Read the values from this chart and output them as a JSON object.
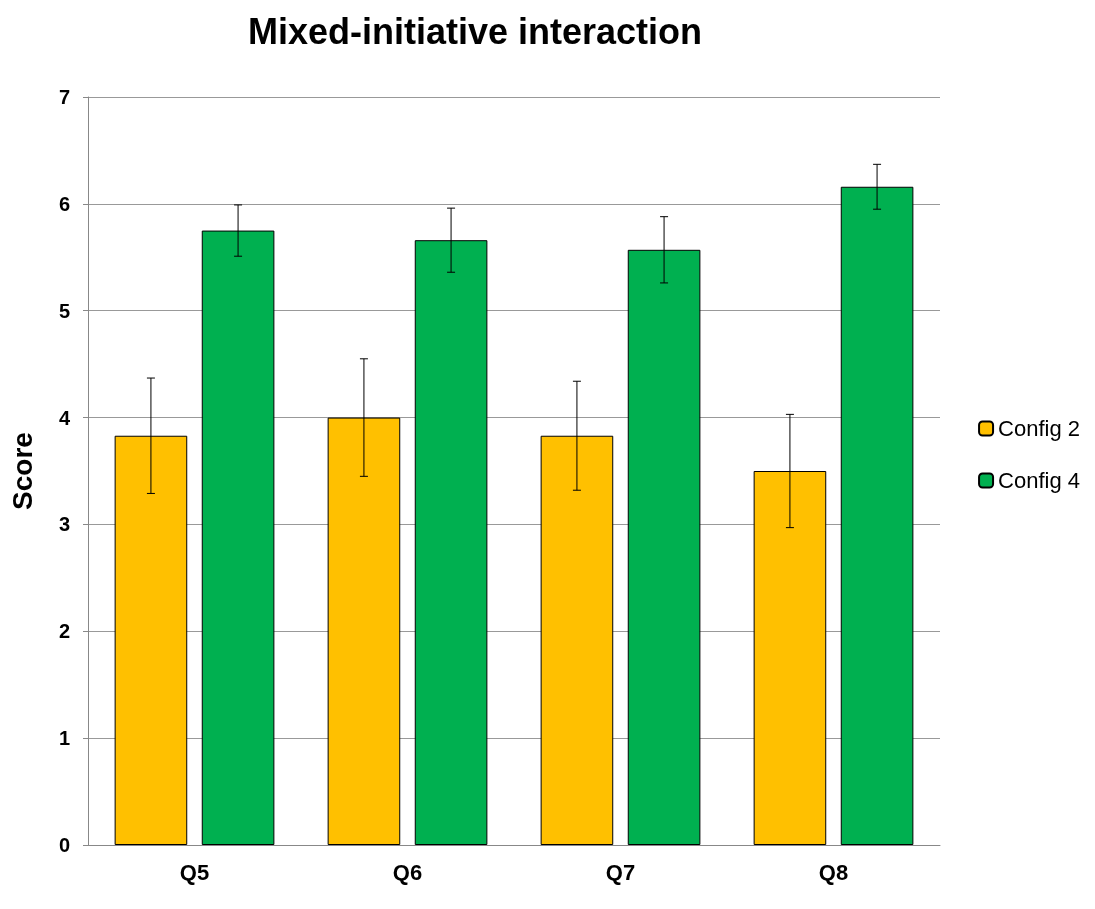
{
  "chart_data": {
    "type": "bar",
    "title": "Mixed-initiative interaction",
    "ylabel": "Score",
    "categories": [
      "Q5",
      "Q6",
      "Q7",
      "Q8"
    ],
    "series": [
      {
        "name": "Config 2",
        "color": "#ffc000",
        "values": [
          3.83,
          4.0,
          3.83,
          3.5
        ],
        "errors": [
          0.54,
          0.55,
          0.51,
          0.53
        ]
      },
      {
        "name": "Config 4",
        "color": "#00b050",
        "values": [
          5.75,
          5.66,
          5.57,
          6.16
        ],
        "errors": [
          0.24,
          0.3,
          0.31,
          0.21
        ]
      }
    ],
    "ylim": [
      0,
      7
    ],
    "yticks": [
      0,
      1,
      2,
      3,
      4,
      5,
      6,
      7
    ],
    "grid": "y",
    "legend": "right"
  }
}
